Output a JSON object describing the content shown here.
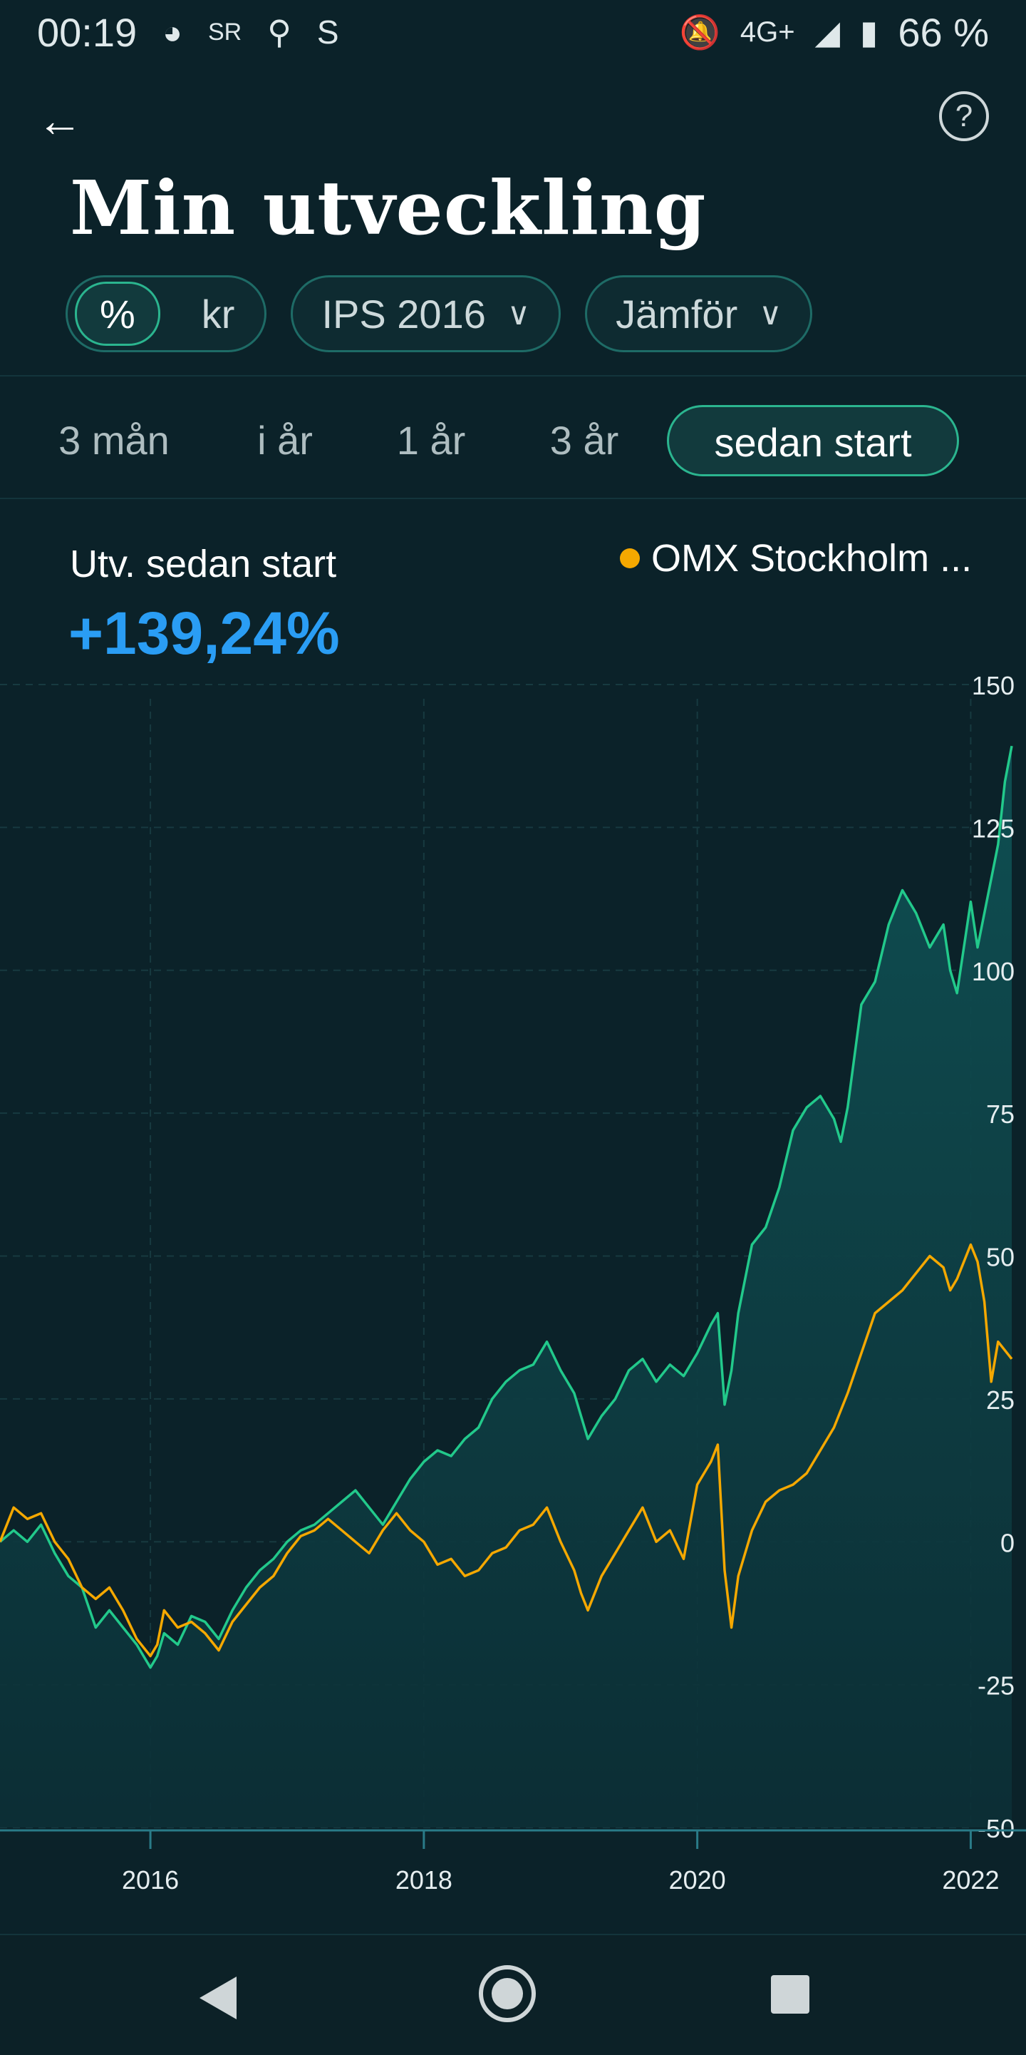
{
  "status_bar": {
    "time": "00:19",
    "network": "4G+",
    "battery": "66 %",
    "icons": [
      "shazam-icon",
      "sr-icon",
      "location-icon",
      "s-icon",
      "notifications-off-icon",
      "signal-icon",
      "battery-icon"
    ]
  },
  "header": {
    "title": "Min utveckling",
    "back_icon": "arrow-left-icon",
    "help_icon": "help-circle-icon"
  },
  "filters": {
    "unit_options": [
      "%",
      "kr"
    ],
    "unit_selected": "%",
    "account": "IPS 2016",
    "compare": "Jämför"
  },
  "periods": {
    "items": [
      "3 mån",
      "i år",
      "1 år",
      "3 år",
      "sedan start"
    ],
    "selected": "sedan start"
  },
  "summary": {
    "label": "Utv.  sedan start",
    "value": "+139,24%",
    "value_color": "#2a9df4"
  },
  "legend": {
    "benchmark": "OMX Stockholm ..."
  },
  "colors": {
    "background": "#0b2229",
    "portfolio_line": "#22c98b",
    "benchmark_line": "#f5a800",
    "accent": "#2bb58f"
  },
  "chart_data": {
    "type": "area",
    "ylim": [
      -50,
      150
    ],
    "y_ticks": [
      "150",
      "125",
      "100",
      "75",
      "50",
      "25",
      "0",
      "-25",
      "-50"
    ],
    "x_ticks": [
      "2016",
      "2018",
      "2020",
      "2022"
    ],
    "x_range": [
      2014.9,
      2022.3
    ],
    "grid": true,
    "legend_position": "top-right",
    "series": [
      {
        "name": "Min utveckling",
        "color": "#22c98b",
        "points": [
          [
            2014.9,
            0
          ],
          [
            2015.0,
            2
          ],
          [
            2015.1,
            0
          ],
          [
            2015.2,
            3
          ],
          [
            2015.3,
            -2
          ],
          [
            2015.4,
            -6
          ],
          [
            2015.5,
            -8
          ],
          [
            2015.6,
            -15
          ],
          [
            2015.7,
            -12
          ],
          [
            2015.8,
            -15
          ],
          [
            2015.9,
            -18
          ],
          [
            2016.0,
            -22
          ],
          [
            2016.05,
            -20
          ],
          [
            2016.1,
            -16
          ],
          [
            2016.2,
            -18
          ],
          [
            2016.3,
            -13
          ],
          [
            2016.4,
            -14
          ],
          [
            2016.5,
            -17
          ],
          [
            2016.6,
            -12
          ],
          [
            2016.7,
            -8
          ],
          [
            2016.8,
            -5
          ],
          [
            2016.9,
            -3
          ],
          [
            2017.0,
            0
          ],
          [
            2017.1,
            2
          ],
          [
            2017.2,
            3
          ],
          [
            2017.3,
            5
          ],
          [
            2017.4,
            7
          ],
          [
            2017.5,
            9
          ],
          [
            2017.6,
            6
          ],
          [
            2017.7,
            3
          ],
          [
            2017.8,
            7
          ],
          [
            2017.9,
            11
          ],
          [
            2018.0,
            14
          ],
          [
            2018.1,
            16
          ],
          [
            2018.2,
            15
          ],
          [
            2018.3,
            18
          ],
          [
            2018.4,
            20
          ],
          [
            2018.5,
            25
          ],
          [
            2018.6,
            28
          ],
          [
            2018.7,
            30
          ],
          [
            2018.8,
            31
          ],
          [
            2018.9,
            35
          ],
          [
            2019.0,
            30
          ],
          [
            2019.1,
            26
          ],
          [
            2019.15,
            22
          ],
          [
            2019.2,
            18
          ],
          [
            2019.3,
            22
          ],
          [
            2019.4,
            25
          ],
          [
            2019.5,
            30
          ],
          [
            2019.6,
            32
          ],
          [
            2019.7,
            28
          ],
          [
            2019.8,
            31
          ],
          [
            2019.9,
            29
          ],
          [
            2020.0,
            33
          ],
          [
            2020.1,
            38
          ],
          [
            2020.15,
            40
          ],
          [
            2020.2,
            24
          ],
          [
            2020.25,
            30
          ],
          [
            2020.3,
            40
          ],
          [
            2020.4,
            52
          ],
          [
            2020.5,
            55
          ],
          [
            2020.6,
            62
          ],
          [
            2020.7,
            72
          ],
          [
            2020.8,
            76
          ],
          [
            2020.9,
            78
          ],
          [
            2021.0,
            74
          ],
          [
            2021.05,
            70
          ],
          [
            2021.1,
            76
          ],
          [
            2021.2,
            94
          ],
          [
            2021.3,
            98
          ],
          [
            2021.4,
            108
          ],
          [
            2021.5,
            114
          ],
          [
            2021.6,
            110
          ],
          [
            2021.7,
            104
          ],
          [
            2021.8,
            108
          ],
          [
            2021.85,
            100
          ],
          [
            2021.9,
            96
          ],
          [
            2022.0,
            112
          ],
          [
            2022.05,
            104
          ],
          [
            2022.1,
            110
          ],
          [
            2022.2,
            122
          ],
          [
            2022.25,
            133
          ],
          [
            2022.3,
            139.24
          ]
        ]
      },
      {
        "name": "OMX Stockholm ...",
        "color": "#f5a800",
        "points": [
          [
            2014.9,
            0
          ],
          [
            2015.0,
            6
          ],
          [
            2015.1,
            4
          ],
          [
            2015.2,
            5
          ],
          [
            2015.3,
            0
          ],
          [
            2015.4,
            -3
          ],
          [
            2015.5,
            -8
          ],
          [
            2015.6,
            -10
          ],
          [
            2015.7,
            -8
          ],
          [
            2015.8,
            -12
          ],
          [
            2015.9,
            -17
          ],
          [
            2016.0,
            -20
          ],
          [
            2016.05,
            -18
          ],
          [
            2016.1,
            -12
          ],
          [
            2016.2,
            -15
          ],
          [
            2016.3,
            -14
          ],
          [
            2016.4,
            -16
          ],
          [
            2016.5,
            -19
          ],
          [
            2016.6,
            -14
          ],
          [
            2016.7,
            -11
          ],
          [
            2016.8,
            -8
          ],
          [
            2016.9,
            -6
          ],
          [
            2017.0,
            -2
          ],
          [
            2017.1,
            1
          ],
          [
            2017.2,
            2
          ],
          [
            2017.3,
            4
          ],
          [
            2017.4,
            2
          ],
          [
            2017.5,
            0
          ],
          [
            2017.6,
            -2
          ],
          [
            2017.7,
            2
          ],
          [
            2017.8,
            5
          ],
          [
            2017.9,
            2
          ],
          [
            2018.0,
            0
          ],
          [
            2018.1,
            -4
          ],
          [
            2018.2,
            -3
          ],
          [
            2018.3,
            -6
          ],
          [
            2018.4,
            -5
          ],
          [
            2018.5,
            -2
          ],
          [
            2018.6,
            -1
          ],
          [
            2018.7,
            2
          ],
          [
            2018.8,
            3
          ],
          [
            2018.9,
            6
          ],
          [
            2019.0,
            0
          ],
          [
            2019.1,
            -5
          ],
          [
            2019.15,
            -9
          ],
          [
            2019.2,
            -12
          ],
          [
            2019.3,
            -6
          ],
          [
            2019.4,
            -2
          ],
          [
            2019.5,
            2
          ],
          [
            2019.6,
            6
          ],
          [
            2019.7,
            0
          ],
          [
            2019.8,
            2
          ],
          [
            2019.9,
            -3
          ],
          [
            2020.0,
            10
          ],
          [
            2020.1,
            14
          ],
          [
            2020.15,
            17
          ],
          [
            2020.2,
            -5
          ],
          [
            2020.25,
            -15
          ],
          [
            2020.3,
            -6
          ],
          [
            2020.4,
            2
          ],
          [
            2020.5,
            7
          ],
          [
            2020.6,
            9
          ],
          [
            2020.7,
            10
          ],
          [
            2020.8,
            12
          ],
          [
            2020.9,
            16
          ],
          [
            2021.0,
            20
          ],
          [
            2021.1,
            26
          ],
          [
            2021.2,
            33
          ],
          [
            2021.3,
            40
          ],
          [
            2021.4,
            42
          ],
          [
            2021.5,
            44
          ],
          [
            2021.6,
            47
          ],
          [
            2021.7,
            50
          ],
          [
            2021.8,
            48
          ],
          [
            2021.85,
            44
          ],
          [
            2021.9,
            46
          ],
          [
            2022.0,
            52
          ],
          [
            2022.05,
            49
          ],
          [
            2022.1,
            42
          ],
          [
            2022.15,
            28
          ],
          [
            2022.2,
            35
          ],
          [
            2022.3,
            32
          ]
        ]
      }
    ]
  }
}
